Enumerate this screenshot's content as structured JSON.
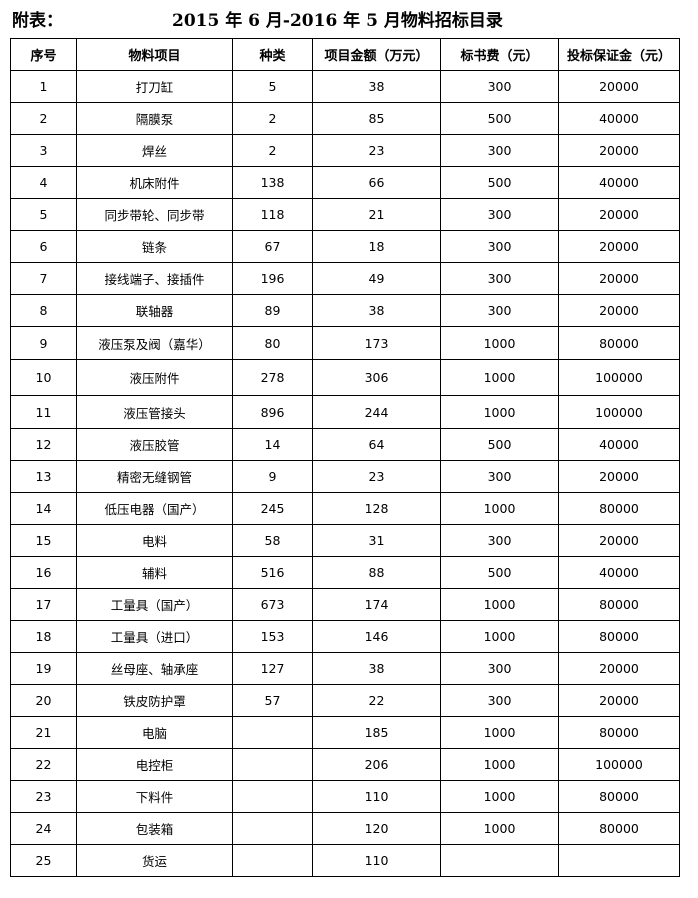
{
  "heading": {
    "prefix": "附表：",
    "title": "2015 年 6 月-2016 年 5 月物料招标目录"
  },
  "columns": [
    "序号",
    "物料项目",
    "种类",
    "项目金额（万元）",
    "标书费（元）",
    "投标保证金（元）"
  ],
  "rows": [
    [
      "1",
      "打刀缸",
      "5",
      "38",
      "300",
      "20000"
    ],
    [
      "2",
      "隔膜泵",
      "2",
      "85",
      "500",
      "40000"
    ],
    [
      "3",
      "焊丝",
      "2",
      "23",
      "300",
      "20000"
    ],
    [
      "4",
      "机床附件",
      "138",
      "66",
      "500",
      "40000"
    ],
    [
      "5",
      "同步带轮、同步带",
      "118",
      "21",
      "300",
      "20000"
    ],
    [
      "6",
      "链条",
      "67",
      "18",
      "300",
      "20000"
    ],
    [
      "7",
      "接线端子、接插件",
      "196",
      "49",
      "300",
      "20000"
    ],
    [
      "8",
      "联轴器",
      "89",
      "38",
      "300",
      "20000"
    ],
    [
      "9",
      "液压泵及阀（嘉华）",
      "80",
      "173",
      "1000",
      "80000"
    ],
    [
      "10",
      "液压附件",
      "278",
      "306",
      "1000",
      "100000"
    ],
    [
      "11",
      "液压管接头",
      "896",
      "244",
      "1000",
      "100000"
    ],
    [
      "12",
      "液压胶管",
      "14",
      "64",
      "500",
      "40000"
    ],
    [
      "13",
      "精密无缝钢管",
      "9",
      "23",
      "300",
      "20000"
    ],
    [
      "14",
      "低压电器（国产）",
      "245",
      "128",
      "1000",
      "80000"
    ],
    [
      "15",
      "电料",
      "58",
      "31",
      "300",
      "20000"
    ],
    [
      "16",
      "辅料",
      "516",
      "88",
      "500",
      "40000"
    ],
    [
      "17",
      "工量具（国产）",
      "673",
      "174",
      "1000",
      "80000"
    ],
    [
      "18",
      "工量具（进口）",
      "153",
      "146",
      "1000",
      "80000"
    ],
    [
      "19",
      "丝母座、轴承座",
      "127",
      "38",
      "300",
      "20000"
    ],
    [
      "20",
      "铁皮防护罩",
      "57",
      "22",
      "300",
      "20000"
    ],
    [
      "21",
      "电脑",
      "",
      "185",
      "1000",
      "80000"
    ],
    [
      "22",
      "电控柜",
      "",
      "206",
      "1000",
      "100000"
    ],
    [
      "23",
      "下料件",
      "",
      "110",
      "1000",
      "80000"
    ],
    [
      "24",
      "包装箱",
      "",
      "120",
      "1000",
      "80000"
    ],
    [
      "25",
      "货运",
      "",
      "110",
      "",
      ""
    ]
  ]
}
